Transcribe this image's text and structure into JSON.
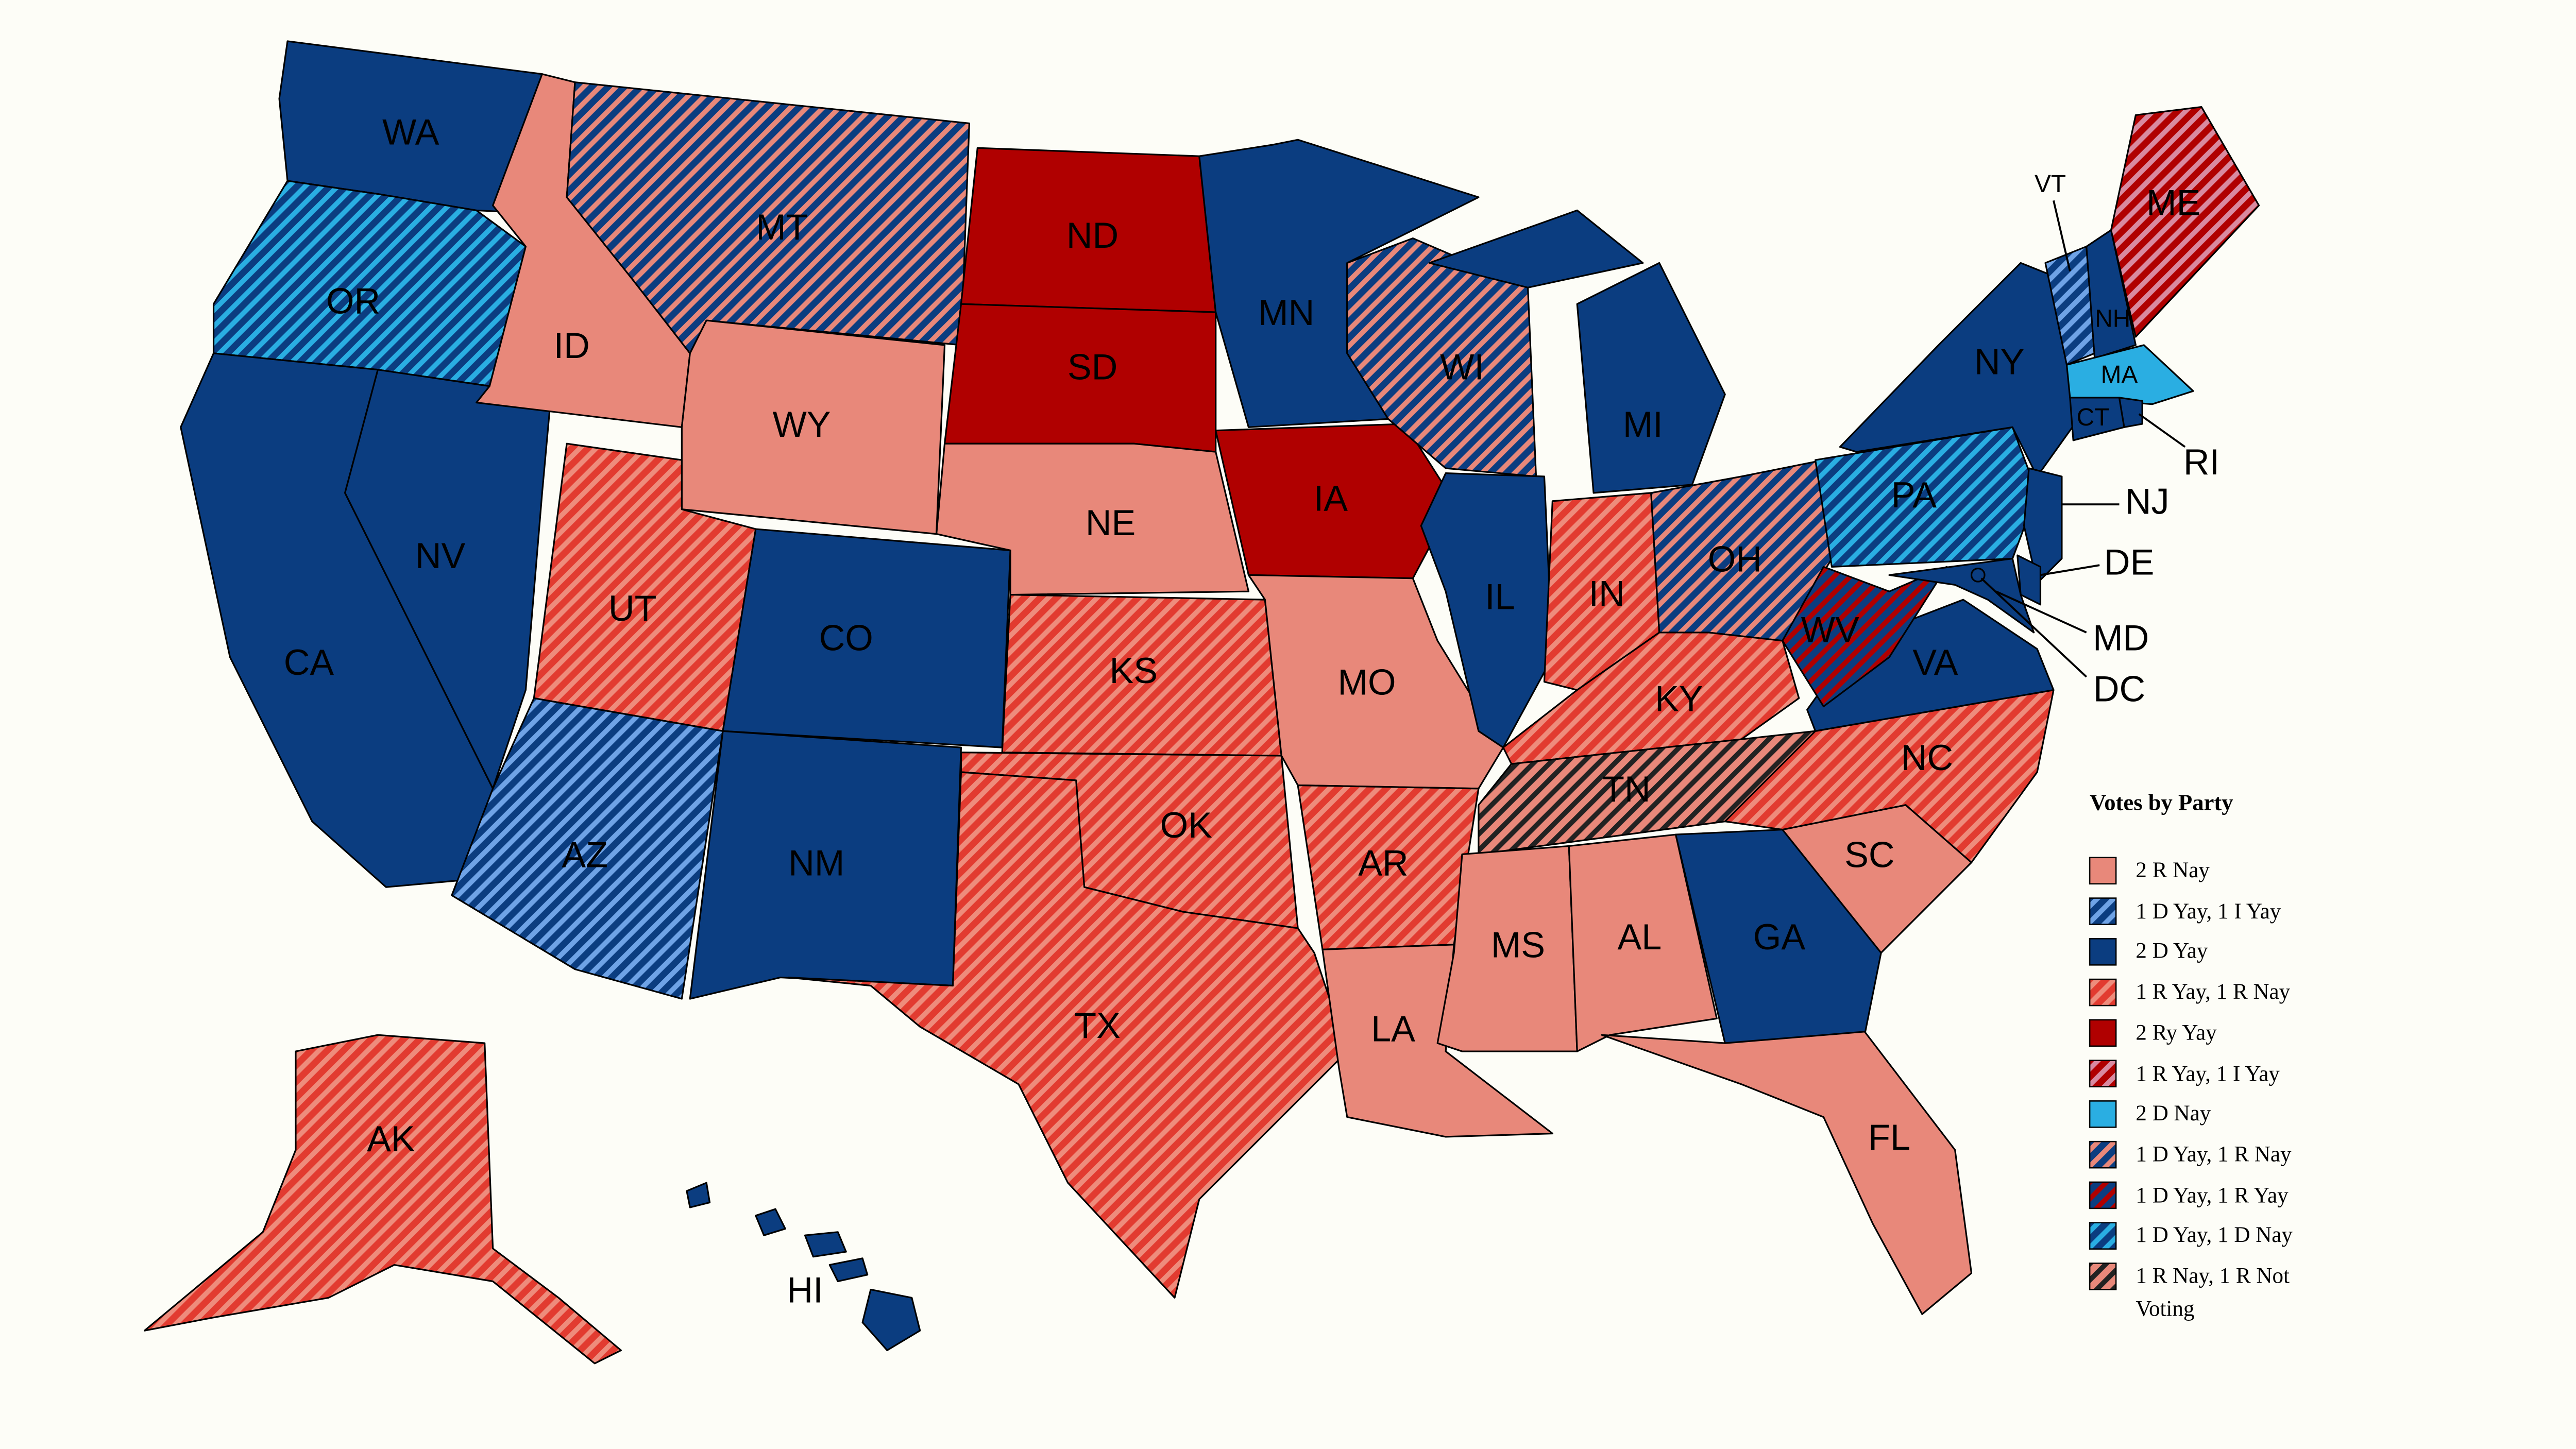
{
  "legend": {
    "title": "Votes by Party",
    "items": [
      {
        "label": "2 R Nay",
        "colors": [
          "#e8887a"
        ],
        "states": [
          "ID",
          "WY",
          "NE",
          "MO",
          "LA",
          "MS",
          "AL",
          "SC",
          "FL"
        ]
      },
      {
        "label": "1 D Yay, 1 I Yay",
        "colors": [
          "#0b3d80",
          "#6fa3e6"
        ],
        "states": [
          "AZ",
          "VT"
        ]
      },
      {
        "label": "2 D Yay",
        "colors": [
          "#0b3d80"
        ],
        "states": [
          "WA",
          "CA",
          "NV",
          "CO",
          "NM",
          "MN",
          "IL",
          "MI",
          "GA",
          "NY",
          "VA",
          "NH",
          "CT",
          "RI",
          "NJ",
          "DE",
          "MD",
          "DC",
          "HI"
        ]
      },
      {
        "label": "1 R Yay, 1 R Nay",
        "colors": [
          "#e23b30",
          "#ee8c7c"
        ],
        "states": [
          "UT",
          "KS",
          "OK",
          "TX",
          "AR",
          "IN",
          "KY",
          "NC",
          "AK"
        ]
      },
      {
        "label": "2 Ry Yay",
        "colors": [
          "#b00000"
        ],
        "states": [
          "ND",
          "SD",
          "IA"
        ]
      },
      {
        "label": "1 R Yay, 1 I Yay",
        "colors": [
          "#b00000",
          "#d98aa0"
        ],
        "states": [
          "ME"
        ]
      },
      {
        "label": "2 D Nay",
        "colors": [
          "#2aaee2"
        ],
        "states": [
          "MA"
        ]
      },
      {
        "label": "1 D Yay, 1 R Nay",
        "colors": [
          "#0b3d80",
          "#e8887a"
        ],
        "states": [
          "MT",
          "WI",
          "OH"
        ]
      },
      {
        "label": "1 D Yay, 1 R Yay",
        "colors": [
          "#0b3d80",
          "#b00000"
        ],
        "states": [
          "WV"
        ]
      },
      {
        "label": "1 D Yay, 1 D Nay",
        "colors": [
          "#0b3d80",
          "#2aaee2"
        ],
        "states": [
          "OR",
          "PA"
        ]
      },
      {
        "label": "1 R Nay, 1 R Not Voting",
        "colors": [
          "#e8887a",
          "#222222"
        ],
        "states": [
          "TN"
        ]
      }
    ]
  }
}
